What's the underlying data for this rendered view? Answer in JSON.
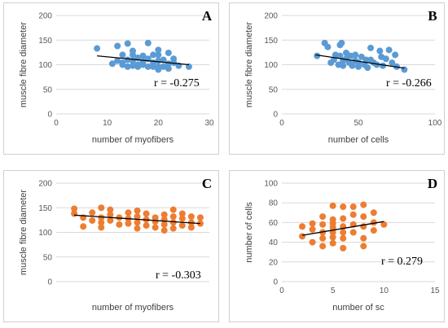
{
  "colors": {
    "blue": "#5B9BD5",
    "orange": "#ED7D31",
    "grid": "#D9D9D9",
    "trend": "#000000"
  },
  "chart_data": [
    {
      "type": "scatter",
      "letter": "A",
      "xlabel": "number of myofibers",
      "ylabel": "muscle fibre diameter",
      "xlim": [
        0,
        30
      ],
      "ylim": [
        0,
        200
      ],
      "xticks": [
        0,
        10,
        20,
        30
      ],
      "yticks": [
        0,
        50,
        100,
        150,
        200
      ],
      "grid": true,
      "color": "blue",
      "r_label": "r = -0.275",
      "trendline": [
        [
          8,
          118
        ],
        [
          26,
          100
        ]
      ],
      "points": [
        [
          8,
          133
        ],
        [
          11,
          102
        ],
        [
          12,
          138
        ],
        [
          12,
          108
        ],
        [
          13,
          104
        ],
        [
          13,
          100
        ],
        [
          13,
          120
        ],
        [
          14,
          143
        ],
        [
          14,
          110
        ],
        [
          14,
          96
        ],
        [
          15,
          128
        ],
        [
          15,
          120
        ],
        [
          15,
          108
        ],
        [
          15,
          98
        ],
        [
          16,
          114
        ],
        [
          16,
          100
        ],
        [
          16,
          96
        ],
        [
          17,
          118
        ],
        [
          17,
          106
        ],
        [
          17,
          100
        ],
        [
          18,
          144
        ],
        [
          18,
          112
        ],
        [
          18,
          96
        ],
        [
          19,
          120
        ],
        [
          19,
          104
        ],
        [
          19,
          96
        ],
        [
          20,
          130
        ],
        [
          20,
          120
        ],
        [
          20,
          108
        ],
        [
          20,
          96
        ],
        [
          20,
          90
        ],
        [
          21,
          110
        ],
        [
          21,
          96
        ],
        [
          22,
          124
        ],
        [
          22,
          102
        ],
        [
          22,
          92
        ],
        [
          23,
          112
        ],
        [
          23,
          104
        ],
        [
          24,
          98
        ],
        [
          26,
          96
        ]
      ]
    },
    {
      "type": "scatter",
      "letter": "B",
      "xlabel": "number of cells",
      "ylabel": "muscle fibre diameter",
      "xlim": [
        0,
        100
      ],
      "ylim": [
        0,
        200
      ],
      "xticks": [
        0,
        50,
        100
      ],
      "yticks": [
        0,
        50,
        100,
        150,
        200
      ],
      "grid": true,
      "color": "blue",
      "r_label": "r = -0.266",
      "trendline": [
        [
          22,
          120
        ],
        [
          80,
          93
        ]
      ],
      "points": [
        [
          23,
          118
        ],
        [
          28,
          144
        ],
        [
          30,
          136
        ],
        [
          32,
          104
        ],
        [
          34,
          110
        ],
        [
          35,
          120
        ],
        [
          37,
          100
        ],
        [
          38,
          140
        ],
        [
          38,
          118
        ],
        [
          39,
          144
        ],
        [
          40,
          108
        ],
        [
          40,
          98
        ],
        [
          42,
          124
        ],
        [
          42,
          112
        ],
        [
          44,
          104
        ],
        [
          45,
          118
        ],
        [
          46,
          98
        ],
        [
          48,
          120
        ],
        [
          48,
          108
        ],
        [
          50,
          104
        ],
        [
          50,
          96
        ],
        [
          52,
          116
        ],
        [
          54,
          100
        ],
        [
          55,
          110
        ],
        [
          56,
          94
        ],
        [
          58,
          134
        ],
        [
          58,
          110
        ],
        [
          60,
          104
        ],
        [
          62,
          100
        ],
        [
          64,
          128
        ],
        [
          65,
          116
        ],
        [
          66,
          98
        ],
        [
          68,
          112
        ],
        [
          70,
          130
        ],
        [
          72,
          104
        ],
        [
          74,
          120
        ],
        [
          75,
          96
        ],
        [
          80,
          90
        ]
      ]
    },
    {
      "type": "scatter",
      "letter": "C",
      "xlabel": "number of myofibers",
      "ylabel": "muscle fibre diameter",
      "xlim": [
        5,
        22
      ],
      "ylim": [
        0,
        200
      ],
      "xticks": [],
      "yticks": [
        0,
        50,
        100,
        150,
        200
      ],
      "grid": true,
      "color": "orange",
      "r_label": "r = -0.303",
      "trendline": [
        [
          7,
          135
        ],
        [
          21,
          118
        ]
      ],
      "points": [
        [
          7,
          148
        ],
        [
          7,
          138
        ],
        [
          8,
          112
        ],
        [
          8,
          130
        ],
        [
          9,
          124
        ],
        [
          9,
          140
        ],
        [
          10,
          150
        ],
        [
          10,
          130
        ],
        [
          10,
          120
        ],
        [
          10,
          110
        ],
        [
          11,
          146
        ],
        [
          11,
          136
        ],
        [
          11,
          124
        ],
        [
          12,
          130
        ],
        [
          12,
          116
        ],
        [
          13,
          140
        ],
        [
          13,
          128
        ],
        [
          13,
          118
        ],
        [
          14,
          144
        ],
        [
          14,
          132
        ],
        [
          14,
          120
        ],
        [
          14,
          108
        ],
        [
          15,
          138
        ],
        [
          15,
          126
        ],
        [
          15,
          114
        ],
        [
          16,
          130
        ],
        [
          16,
          122
        ],
        [
          16,
          110
        ],
        [
          17,
          136
        ],
        [
          17,
          126
        ],
        [
          17,
          116
        ],
        [
          17,
          104
        ],
        [
          18,
          146
        ],
        [
          18,
          132
        ],
        [
          18,
          120
        ],
        [
          18,
          108
        ],
        [
          19,
          138
        ],
        [
          19,
          128
        ],
        [
          19,
          114
        ],
        [
          20,
          132
        ],
        [
          20,
          120
        ],
        [
          20,
          110
        ],
        [
          21,
          130
        ],
        [
          21,
          118
        ]
      ]
    },
    {
      "type": "scatter",
      "letter": "D",
      "xlabel": "number of sc",
      "ylabel": "number of cells",
      "xlim": [
        0,
        15
      ],
      "ylim": [
        0,
        100
      ],
      "xticks": [
        0,
        5,
        10,
        15
      ],
      "yticks": [
        0,
        20,
        40,
        60,
        80,
        100
      ],
      "grid": true,
      "color": "orange",
      "r_label": "r = 0.279",
      "trendline": [
        [
          2,
          47
        ],
        [
          10,
          61
        ]
      ],
      "points": [
        [
          2,
          56
        ],
        [
          2,
          46
        ],
        [
          3,
          59
        ],
        [
          3,
          53
        ],
        [
          3,
          40
        ],
        [
          4,
          66
        ],
        [
          4,
          58
        ],
        [
          4,
          50
        ],
        [
          4,
          44
        ],
        [
          4,
          36
        ],
        [
          5,
          77
        ],
        [
          5,
          63
        ],
        [
          5,
          59
        ],
        [
          5,
          55
        ],
        [
          5,
          50
        ],
        [
          5,
          45
        ],
        [
          5,
          39
        ],
        [
          6,
          76
        ],
        [
          6,
          64
        ],
        [
          6,
          56
        ],
        [
          6,
          50
        ],
        [
          6,
          44
        ],
        [
          6,
          34
        ],
        [
          7,
          76
        ],
        [
          7,
          68
        ],
        [
          7,
          58
        ],
        [
          7,
          50
        ],
        [
          8,
          78
        ],
        [
          8,
          66
        ],
        [
          8,
          56
        ],
        [
          8,
          44
        ],
        [
          8,
          36
        ],
        [
          9,
          70
        ],
        [
          9,
          60
        ],
        [
          9,
          52
        ],
        [
          10,
          58
        ]
      ]
    }
  ]
}
